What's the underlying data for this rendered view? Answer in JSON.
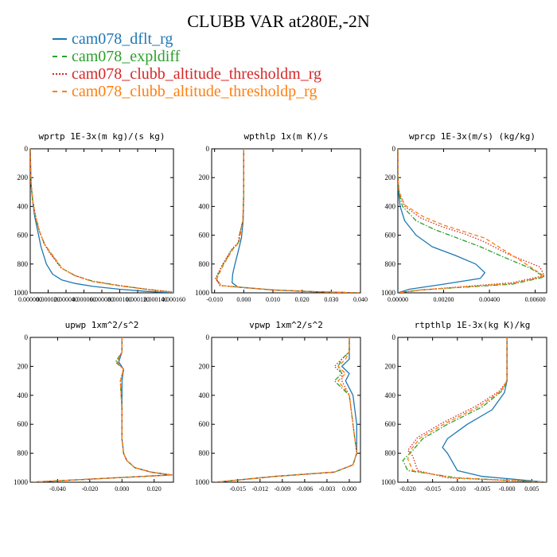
{
  "title": "CLUBB VAR at280E,-2N",
  "legend": [
    {
      "label": "cam078_dflt_rg",
      "color": "#1f77b4",
      "dash": "solid"
    },
    {
      "label": "cam078_expldiff",
      "color": "#2ca02c",
      "dash": "dashdot"
    },
    {
      "label": "cam078_clubb_altitude_thresholdm_rg",
      "color": "#d62728",
      "dash": "dotted"
    },
    {
      "label": "cam078_clubb_altitude_thresholdp_rg",
      "color": "#ff7f0e",
      "dash": "dashed"
    }
  ],
  "chart_data": [
    {
      "type": "line",
      "title": "wprtp  1E-3x(m kg)/(s kg)",
      "xlim": [
        0,
        0.00016
      ],
      "ylim": [
        1000,
        0
      ],
      "xticks": [
        "0.000000",
        "0.000020",
        "0.000040",
        "0.000060",
        "0.000080",
        "0.000100",
        "0.000120",
        "0.000140",
        "0.000160"
      ],
      "yticks": [
        0,
        200,
        400,
        600,
        800,
        1000
      ],
      "series": [
        {
          "name": "cam078_dflt_rg",
          "x": [
            0,
            5e-07,
            1e-06,
            3e-06,
            5e-06,
            8e-06,
            1.2e-05,
            1.8e-05,
            2.5e-05,
            3.5e-05,
            5e-05,
            7e-05,
            0.0001,
            0.00013,
            0.00016
          ],
          "y": [
            0,
            150,
            250,
            380,
            470,
            560,
            680,
            800,
            870,
            910,
            935,
            955,
            975,
            990,
            1000
          ]
        },
        {
          "name": "cam078_expldiff",
          "x": [
            0,
            5e-07,
            1e-06,
            3e-06,
            6e-06,
            1e-05,
            1.6e-05,
            2.2e-05,
            3.5e-05,
            5e-05,
            7e-05,
            0.0001,
            0.00013,
            0.000158
          ],
          "y": [
            0,
            150,
            250,
            370,
            470,
            570,
            660,
            720,
            830,
            880,
            920,
            950,
            975,
            995
          ]
        },
        {
          "name": "cam078_clubb_altitude_thresholdm_rg",
          "x": [
            0,
            5e-07,
            1e-06,
            3e-06,
            6e-06,
            1e-05,
            1.5e-05,
            2.1e-05,
            3.4e-05,
            5e-05,
            7e-05,
            0.0001,
            0.00013,
            0.000158
          ],
          "y": [
            0,
            150,
            250,
            370,
            470,
            565,
            655,
            715,
            825,
            880,
            920,
            950,
            975,
            993
          ]
        },
        {
          "name": "cam078_clubb_altitude_thresholdp_rg",
          "x": [
            0,
            5e-07,
            1e-06,
            3e-06,
            6e-06,
            1e-05,
            1.6e-05,
            2.3e-05,
            3.6e-05,
            5e-05,
            7e-05,
            0.0001,
            0.00013,
            0.000159
          ],
          "y": [
            0,
            150,
            250,
            372,
            472,
            572,
            662,
            722,
            832,
            882,
            922,
            952,
            977,
            996
          ]
        }
      ]
    },
    {
      "type": "line",
      "title": "wpthlp  1x(m K)/s",
      "xlim": [
        -0.011,
        0.04
      ],
      "ylim": [
        1000,
        0
      ],
      "xticks": [
        "-0.010",
        "0.000",
        "0.010",
        "0.020",
        "0.030",
        "0.040"
      ],
      "yticks": [
        0,
        200,
        400,
        600,
        800,
        1000
      ],
      "series": [
        {
          "name": "cam078_dflt_rg",
          "x": [
            0,
            0,
            -0.0002,
            -0.0008,
            -0.002,
            -0.003,
            -0.0038,
            -0.004,
            -0.002,
            0.01,
            0.025,
            0.039
          ],
          "y": [
            0,
            300,
            500,
            620,
            720,
            800,
            870,
            930,
            960,
            980,
            993,
            1000
          ]
        },
        {
          "name": "cam078_expldiff",
          "x": [
            0,
            0,
            -0.0003,
            -0.0015,
            -0.0018,
            -0.004,
            -0.007,
            -0.0095,
            -0.008,
            0.01,
            0.025,
            0.0395
          ],
          "y": [
            0,
            300,
            500,
            600,
            650,
            700,
            800,
            900,
            950,
            980,
            993,
            1000
          ]
        },
        {
          "name": "cam078_clubb_altitude_thresholdm_rg",
          "x": [
            0,
            0,
            -0.0003,
            -0.0015,
            -0.0018,
            -0.0042,
            -0.0072,
            -0.0097,
            -0.0082,
            0.01,
            0.025,
            0.0395
          ],
          "y": [
            0,
            300,
            500,
            600,
            650,
            700,
            800,
            900,
            950,
            980,
            993,
            1000
          ]
        },
        {
          "name": "cam078_clubb_altitude_thresholdp_rg",
          "x": [
            0,
            0,
            -0.0003,
            -0.0012,
            -0.0016,
            -0.0038,
            -0.0068,
            -0.0092,
            -0.0078,
            0.01,
            0.025,
            0.0395
          ],
          "y": [
            0,
            300,
            500,
            600,
            650,
            700,
            800,
            900,
            950,
            980,
            993,
            1000
          ]
        }
      ]
    },
    {
      "type": "line",
      "title": "wprcp  1E-3x(m/s) (kg/kg)",
      "xlim": [
        0,
        0.0065
      ],
      "ylim": [
        1000,
        0
      ],
      "xticks": [
        "0.00000",
        "0.00200",
        "0.00400",
        "0.00600"
      ],
      "yticks": [
        0,
        200,
        400,
        600,
        800,
        1000
      ],
      "series": [
        {
          "name": "cam078_dflt_rg",
          "x": [
            0,
            0,
            3e-05,
            0.0001,
            0.0003,
            0.0008,
            0.0015,
            0.0025,
            0.0034,
            0.0038,
            0.0036,
            0.002,
            0.0005,
            0
          ],
          "y": [
            0,
            200,
            300,
            400,
            500,
            600,
            680,
            740,
            800,
            860,
            900,
            940,
            975,
            1000
          ]
        },
        {
          "name": "cam078_expldiff",
          "x": [
            0,
            0,
            5e-05,
            0.0002,
            0.0008,
            0.0016,
            0.0026,
            0.0036,
            0.0046,
            0.0058,
            0.0064,
            0.005,
            0.001,
            0
          ],
          "y": [
            0,
            200,
            300,
            400,
            500,
            560,
            620,
            680,
            750,
            830,
            890,
            940,
            980,
            1000
          ]
        },
        {
          "name": "cam078_clubb_altitude_thresholdm_rg",
          "x": [
            0,
            0,
            6e-05,
            0.0003,
            0.001,
            0.0019,
            0.0029,
            0.0037,
            0.0048,
            0.0062,
            0.0064,
            0.005,
            0.001,
            0
          ],
          "y": [
            0,
            200,
            300,
            400,
            480,
            540,
            590,
            640,
            730,
            820,
            880,
            930,
            980,
            1000
          ]
        },
        {
          "name": "cam078_clubb_altitude_thresholdp_rg",
          "x": [
            0,
            0,
            6e-05,
            0.0003,
            0.0011,
            0.002,
            0.003,
            0.0038,
            0.0044,
            0.0055,
            0.0064,
            0.005,
            0.001,
            0
          ],
          "y": [
            0,
            200,
            300,
            390,
            470,
            530,
            580,
            620,
            680,
            790,
            885,
            935,
            980,
            1000
          ]
        }
      ]
    },
    {
      "type": "line",
      "title": "upwp  1xm^2/s^2",
      "xlim": [
        -0.057,
        0.032
      ],
      "ylim": [
        1000,
        0
      ],
      "xticks": [
        "-0.040",
        "-0.020",
        "0.000",
        "0.020"
      ],
      "yticks": [
        0,
        200,
        400,
        600,
        800,
        1000
      ],
      "series": [
        {
          "name": "cam078_dflt_rg",
          "x": [
            0,
            0,
            -0.002,
            0.001,
            0,
            0,
            0,
            0.001,
            0.003,
            0.008,
            0.018,
            0.03,
            -0.057
          ],
          "y": [
            0,
            100,
            170,
            220,
            300,
            500,
            700,
            800,
            850,
            900,
            930,
            950,
            1000
          ]
        },
        {
          "name": "cam078_expldiff",
          "x": [
            0,
            0,
            -0.004,
            0.001,
            -0.001,
            0,
            0,
            0.001,
            0.003,
            0.008,
            0.018,
            0.031,
            -0.057
          ],
          "y": [
            0,
            100,
            170,
            220,
            300,
            500,
            700,
            800,
            850,
            900,
            930,
            950,
            1000
          ]
        },
        {
          "name": "cam078_clubb_altitude_thresholdm_rg",
          "x": [
            0,
            0,
            -0.003,
            0.001,
            -0.001,
            0,
            0,
            0.001,
            0.003,
            0.008,
            0.018,
            0.031,
            -0.057
          ],
          "y": [
            0,
            100,
            170,
            220,
            300,
            500,
            700,
            800,
            850,
            900,
            930,
            950,
            1000
          ]
        },
        {
          "name": "cam078_clubb_altitude_thresholdp_rg",
          "x": [
            0,
            0,
            -0.003,
            0.001,
            -0.001,
            0,
            0,
            0.001,
            0.003,
            0.008,
            0.018,
            0.031,
            -0.057
          ],
          "y": [
            0,
            100,
            170,
            220,
            300,
            500,
            700,
            800,
            850,
            900,
            930,
            950,
            1000
          ]
        }
      ]
    },
    {
      "type": "line",
      "title": "vpwp  1xm^2/s^2",
      "xlim": [
        -0.0185,
        0.0015
      ],
      "ylim": [
        1000,
        0
      ],
      "xticks": [
        "-0.015",
        "-0.012",
        "-0.009",
        "-0.006",
        "-0.003",
        "0.000"
      ],
      "yticks": [
        0,
        200,
        400,
        600,
        800,
        1000
      ],
      "series": [
        {
          "name": "cam078_dflt_rg",
          "x": [
            0,
            0,
            0,
            -0.001,
            0,
            -0.0005,
            0.0005,
            0.001,
            0.001,
            0.0005,
            -0.002,
            -0.01,
            -0.018
          ],
          "y": [
            0,
            100,
            150,
            200,
            250,
            300,
            400,
            600,
            800,
            880,
            930,
            960,
            1000
          ]
        },
        {
          "name": "cam078_expldiff",
          "x": [
            0,
            0,
            -0.001,
            -0.0015,
            -0.001,
            -0.002,
            0,
            0.0005,
            0.001,
            0.0005,
            -0.002,
            -0.01,
            -0.018
          ],
          "y": [
            0,
            100,
            150,
            200,
            250,
            300,
            400,
            600,
            800,
            880,
            930,
            960,
            1000
          ]
        },
        {
          "name": "cam078_clubb_altitude_thresholdm_rg",
          "x": [
            0,
            0,
            -0.001,
            -0.002,
            -0.001,
            -0.001,
            0,
            0.0005,
            0.001,
            0.0005,
            -0.002,
            -0.01,
            -0.018
          ],
          "y": [
            0,
            100,
            150,
            200,
            250,
            300,
            400,
            600,
            800,
            880,
            930,
            960,
            1000
          ]
        },
        {
          "name": "cam078_clubb_altitude_thresholdp_rg",
          "x": [
            0,
            0,
            -0.0005,
            -0.0015,
            -0.0005,
            -0.0015,
            0,
            0.0005,
            0.001,
            0.0005,
            -0.002,
            -0.01,
            -0.018
          ],
          "y": [
            0,
            100,
            150,
            200,
            250,
            300,
            400,
            600,
            800,
            880,
            930,
            960,
            1000
          ]
        }
      ]
    },
    {
      "type": "line",
      "title": "rtpthlp  1E-3x(kg K)/kg",
      "xlim": [
        -0.022,
        0.008
      ],
      "ylim": [
        1000,
        0
      ],
      "xticks": [
        "-0.020",
        "-0.015",
        "-0.010",
        "-0.005",
        "-0.000",
        "0.005"
      ],
      "yticks": [
        0,
        200,
        400,
        600,
        800,
        1000
      ],
      "series": [
        {
          "name": "cam078_dflt_rg",
          "x": [
            0,
            0,
            -0.0005,
            -0.003,
            -0.008,
            -0.012,
            -0.013,
            -0.012,
            -0.011,
            -0.01,
            -0.005,
            0.008
          ],
          "y": [
            0,
            300,
            380,
            500,
            600,
            700,
            760,
            800,
            860,
            920,
            960,
            1000
          ]
        },
        {
          "name": "cam078_expldiff",
          "x": [
            0,
            0,
            -0.001,
            -0.005,
            -0.012,
            -0.017,
            -0.019,
            -0.021,
            -0.02,
            -0.01,
            0.008
          ],
          "y": [
            0,
            300,
            370,
            480,
            600,
            700,
            780,
            850,
            920,
            970,
            1000
          ]
        },
        {
          "name": "cam078_clubb_altitude_thresholdm_rg",
          "x": [
            0,
            0,
            -0.0015,
            -0.006,
            -0.013,
            -0.018,
            -0.02,
            -0.019,
            -0.018,
            -0.012,
            0.008
          ],
          "y": [
            0,
            300,
            370,
            470,
            590,
            690,
            780,
            820,
            920,
            970,
            1000
          ]
        },
        {
          "name": "cam078_clubb_altitude_thresholdp_rg",
          "x": [
            0,
            0,
            -0.0012,
            -0.0055,
            -0.0125,
            -0.0175,
            -0.0195,
            -0.02,
            -0.019,
            -0.011,
            0.008
          ],
          "y": [
            0,
            300,
            370,
            475,
            595,
            695,
            780,
            840,
            920,
            970,
            1000
          ]
        }
      ]
    }
  ]
}
